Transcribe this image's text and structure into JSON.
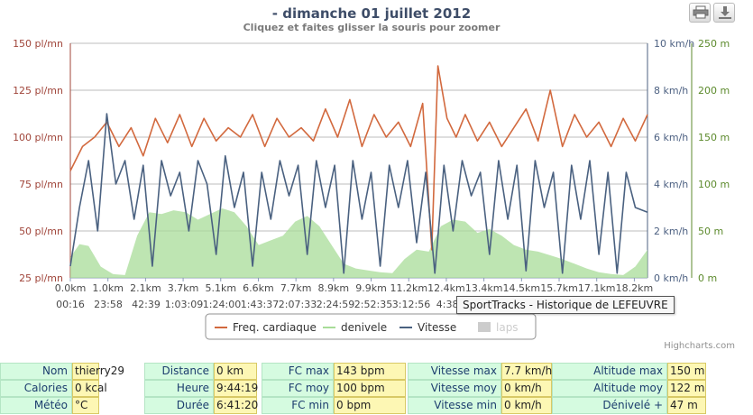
{
  "chart_data": {
    "type": "line",
    "title": "- dimanche 01 juillet 2012",
    "subtitle": "Cliquez et faites glisser la souris pour zoomer",
    "x_ticks": [
      "0.0km",
      "1.0km",
      "2.1km",
      "3.7km",
      "5.1km",
      "6.6km",
      "7.7km",
      "8.9km",
      "9.9km",
      "11.2km",
      "12.4km",
      "13.4km",
      "14.5km",
      "15.7km",
      "17.1km",
      "18.2km"
    ],
    "time_ticks": [
      "00:16",
      "23:58",
      "42:39",
      "1:03:09",
      "1:24:00",
      "1:43:37",
      "2:07:33",
      "2:24:59",
      "2:52:35",
      "3:12:56",
      "4:38:"
    ],
    "x_range": [
      0,
      19
    ],
    "y_left": {
      "unit": "pl/mn",
      "range": [
        25,
        150
      ],
      "ticks": [
        "25 pl/mn",
        "50 pl/mn",
        "75 pl/mn",
        "100 pl/mn",
        "125 pl/mn",
        "150 pl/mn"
      ],
      "color": "#a0453a"
    },
    "y_right1": {
      "unit": "km/h",
      "range": [
        0,
        10
      ],
      "ticks": [
        "0 km/h",
        "2 km/h",
        "4 km/h",
        "6 km/h",
        "8 km/h",
        "10 km/h"
      ],
      "color": "#4d6182"
    },
    "y_right2": {
      "unit": "m",
      "range": [
        0,
        250
      ],
      "ticks": [
        "0 m",
        "50 m",
        "100 m",
        "150 m",
        "200 m",
        "250 m"
      ],
      "color": "#5c8a2c"
    },
    "grid": true,
    "legend_position": "bottom",
    "series": [
      {
        "name": "Freq. cardiaque",
        "axis": "left",
        "color": "#d2693e",
        "x": [
          0,
          0.4,
          0.8,
          1.2,
          1.6,
          2.0,
          2.4,
          2.8,
          3.2,
          3.6,
          4.0,
          4.4,
          4.8,
          5.2,
          5.6,
          6.0,
          6.4,
          6.8,
          7.2,
          7.6,
          8.0,
          8.4,
          8.8,
          9.2,
          9.6,
          10.0,
          10.4,
          10.8,
          11.2,
          11.6,
          11.9,
          12.1,
          12.4,
          12.7,
          13.0,
          13.4,
          13.8,
          14.2,
          14.6,
          15.0,
          15.4,
          15.8,
          16.2,
          16.6,
          17.0,
          17.4,
          17.8,
          18.2,
          18.6,
          19.0
        ],
        "values": [
          82,
          95,
          100,
          108,
          95,
          105,
          90,
          110,
          97,
          112,
          95,
          110,
          98,
          105,
          100,
          112,
          95,
          110,
          100,
          105,
          98,
          115,
          100,
          120,
          95,
          112,
          100,
          108,
          95,
          118,
          40,
          138,
          110,
          100,
          112,
          98,
          108,
          95,
          105,
          115,
          98,
          125,
          95,
          112,
          100,
          108,
          95,
          110,
          98,
          112
        ]
      },
      {
        "name": "denivele",
        "axis": "right2",
        "color": "#a8dc98",
        "x": [
          0,
          0.3,
          0.6,
          1.0,
          1.4,
          1.8,
          2.2,
          2.6,
          3.0,
          3.4,
          3.8,
          4.2,
          4.6,
          5.0,
          5.4,
          5.8,
          6.2,
          6.6,
          7.0,
          7.4,
          7.8,
          8.2,
          8.6,
          9.0,
          9.4,
          9.8,
          10.2,
          10.6,
          11.0,
          11.4,
          11.8,
          12.2,
          12.6,
          13.0,
          13.4,
          13.8,
          14.2,
          14.6,
          15.0,
          15.4,
          15.8,
          16.2,
          16.6,
          17.0,
          17.4,
          17.8,
          18.2,
          18.6,
          19.0
        ],
        "values": [
          22,
          36,
          34,
          12,
          4,
          3,
          45,
          70,
          68,
          72,
          70,
          62,
          68,
          74,
          70,
          55,
          35,
          40,
          45,
          60,
          66,
          55,
          35,
          15,
          10,
          8,
          6,
          5,
          20,
          30,
          28,
          55,
          62,
          60,
          48,
          52,
          45,
          35,
          30,
          28,
          24,
          20,
          15,
          10,
          6,
          4,
          3,
          12,
          30
        ]
      },
      {
        "name": "Vitesse",
        "axis": "right1",
        "color": "#4a6180",
        "x": [
          0,
          0.3,
          0.6,
          0.9,
          1.2,
          1.5,
          1.8,
          2.1,
          2.4,
          2.7,
          3.0,
          3.3,
          3.6,
          3.9,
          4.2,
          4.5,
          4.8,
          5.1,
          5.4,
          5.7,
          6.0,
          6.3,
          6.6,
          6.9,
          7.2,
          7.5,
          7.8,
          8.1,
          8.4,
          8.7,
          9.0,
          9.3,
          9.6,
          9.9,
          10.2,
          10.5,
          10.8,
          11.1,
          11.4,
          11.7,
          12.0,
          12.3,
          12.6,
          12.9,
          13.2,
          13.5,
          13.8,
          14.1,
          14.4,
          14.7,
          15.0,
          15.3,
          15.6,
          15.9,
          16.2,
          16.5,
          16.8,
          17.1,
          17.4,
          17.7,
          18.0,
          18.3,
          18.6,
          19.0
        ],
        "values": [
          0.5,
          3,
          5,
          2,
          7,
          4,
          5,
          2.5,
          4.8,
          0.5,
          5,
          3.5,
          4.5,
          2,
          5,
          4,
          1,
          5.2,
          3,
          4.5,
          0.5,
          4.5,
          2.5,
          5,
          3.5,
          4.8,
          1,
          5,
          3,
          4.8,
          0.2,
          5,
          2.5,
          4.5,
          0.5,
          4.8,
          3,
          5,
          1.5,
          4.5,
          0.2,
          4.8,
          2,
          5,
          3.5,
          4.5,
          1,
          5,
          2.5,
          4.8,
          0.3,
          5,
          3,
          4.5,
          0.2,
          4.8,
          2.5,
          5,
          1,
          4.5,
          0.2,
          4.5,
          3,
          2.8
        ]
      },
      {
        "name": "laps",
        "axis": "left",
        "color": "#cccccc",
        "hidden": true,
        "x": [],
        "values": []
      }
    ]
  },
  "tooltip": "SportTracks - Historique de LEFEUVRE",
  "credits": "Highcharts.com",
  "buttons": {
    "print": "print-icon",
    "export": "download-icon"
  },
  "stats": [
    [
      {
        "label": "Nom",
        "value": "thierry29"
      },
      {
        "label": "Distance",
        "value": "0 km"
      },
      {
        "label": "FC max",
        "value": "143 bpm"
      },
      {
        "label": "Vitesse max",
        "value": "7.7 km/h"
      },
      {
        "label": "Altitude max",
        "value": "150 m"
      }
    ],
    [
      {
        "label": "Calories",
        "value": "0 kcal"
      },
      {
        "label": "Heure",
        "value": "9:44:19"
      },
      {
        "label": "FC moy",
        "value": "100 bpm"
      },
      {
        "label": "Vitesse moy",
        "value": "0 km/h"
      },
      {
        "label": "Altitude moy",
        "value": "122 m"
      }
    ],
    [
      {
        "label": "Météo",
        "value": "°C"
      },
      {
        "label": "Durée",
        "value": "6:41:20"
      },
      {
        "label": "FC min",
        "value": "0 bpm"
      },
      {
        "label": "Vitesse min",
        "value": "0 km/h"
      },
      {
        "label": "Dénivelé +",
        "value": "47 m"
      }
    ]
  ]
}
